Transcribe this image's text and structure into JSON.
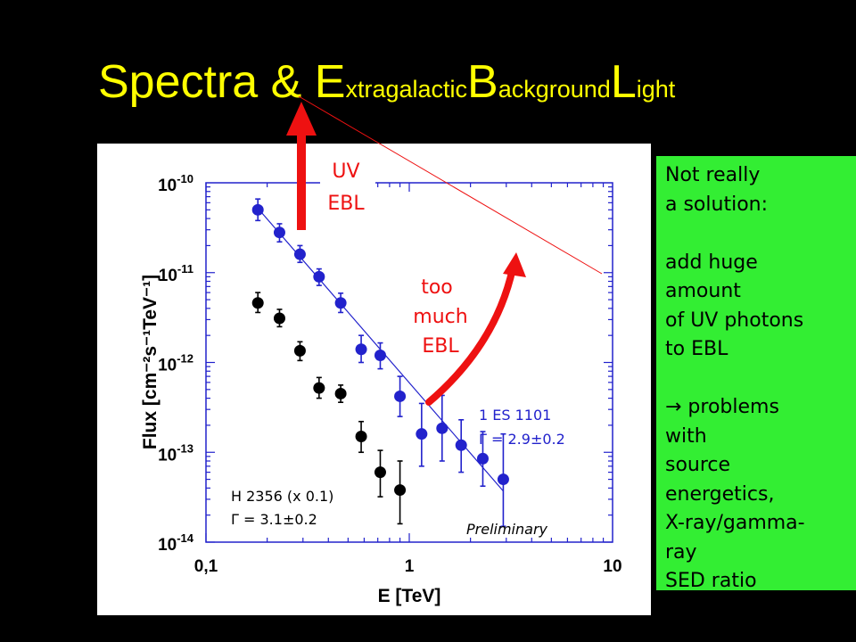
{
  "slide": {
    "title_prefix": "Spectra & ",
    "title_parts": [
      {
        "cap": "E",
        "rest": "xtragalactic"
      },
      {
        "cap": "B",
        "rest": "ackground"
      },
      {
        "cap": "L",
        "rest": "ight"
      }
    ],
    "title_color": "#ffff00",
    "background": "#000000"
  },
  "annotations": {
    "uv_ebl": [
      "UV",
      "EBL"
    ],
    "too_much_ebl": [
      "too",
      "much",
      "EBL"
    ],
    "arrow_color": "#ee1111",
    "label_color": "#ee1111"
  },
  "side_note": {
    "background": "#33ee33",
    "lines": [
      "Not really",
      "a solution:",
      "",
      "add huge",
      "amount",
      "of UV photons",
      "to EBL",
      "",
      "→ problems",
      "with",
      "source",
      "energetics,",
      "X-ray/gamma-",
      "ray",
      "SED ratio"
    ]
  },
  "chart_data": {
    "type": "scatter",
    "xlabel": "E [TeV]",
    "ylabel": "Flux [cm⁻²s⁻¹TeV⁻¹]",
    "x_scale": "log",
    "y_scale": "log",
    "xlim": [
      0.1,
      10
    ],
    "ylim": [
      1e-14,
      1e-10
    ],
    "x_ticks": [
      {
        "value": 0.1,
        "label": "0,1"
      },
      {
        "value": 1,
        "label": "1"
      },
      {
        "value": 10,
        "label": "10"
      }
    ],
    "y_ticks": [
      {
        "value": 1e-10,
        "mantissa": "10",
        "exp": "-10"
      },
      {
        "value": 1e-11,
        "mantissa": "10",
        "exp": "-11"
      },
      {
        "value": 1e-12,
        "mantissa": "10",
        "exp": "-12"
      },
      {
        "value": 1e-13,
        "mantissa": "10",
        "exp": "-13"
      },
      {
        "value": 1e-14,
        "mantissa": "10",
        "exp": "-14"
      }
    ],
    "grid": false,
    "watermark": "Preliminary",
    "series": [
      {
        "name": "1 ES 1101",
        "label_lines": [
          "1 ES 1101",
          "Γ = 2.9±0.2"
        ],
        "color": "#2222cc",
        "points": [
          {
            "x": 0.18,
            "y": 5e-11,
            "lo": 3.8e-11,
            "hi": 6.6e-11
          },
          {
            "x": 0.23,
            "y": 2.8e-11,
            "lo": 2.2e-11,
            "hi": 3.5e-11
          },
          {
            "x": 0.29,
            "y": 1.6e-11,
            "lo": 1.3e-11,
            "hi": 2e-11
          },
          {
            "x": 0.36,
            "y": 9e-12,
            "lo": 7.2e-12,
            "hi": 1.1e-11
          },
          {
            "x": 0.46,
            "y": 4.6e-12,
            "lo": 3.6e-12,
            "hi": 5.9e-12
          },
          {
            "x": 0.58,
            "y": 1.4e-12,
            "lo": 1e-12,
            "hi": 2e-12
          },
          {
            "x": 0.72,
            "y": 1.2e-12,
            "lo": 8.5e-13,
            "hi": 1.65e-12
          },
          {
            "x": 0.9,
            "y": 4.2e-13,
            "lo": 2.5e-13,
            "hi": 7e-13
          },
          {
            "x": 1.15,
            "y": 1.6e-13,
            "lo": 7e-14,
            "hi": 3.5e-13
          },
          {
            "x": 1.45,
            "y": 1.85e-13,
            "lo": 8e-14,
            "hi": 4.3e-13
          },
          {
            "x": 1.8,
            "y": 1.2e-13,
            "lo": 6e-14,
            "hi": 2.3e-13
          },
          {
            "x": 2.3,
            "y": 8.5e-14,
            "lo": 4.2e-14,
            "hi": 1.7e-13
          },
          {
            "x": 2.9,
            "y": 5e-14,
            "lo": 1.5e-14,
            "hi": 1.6e-13
          }
        ],
        "fit": {
          "from": {
            "x": 0.18,
            "y": 5.2e-11
          },
          "to": {
            "x": 2.9,
            "y": 3.7e-14
          }
        }
      },
      {
        "name": "H 2356 (x 0.1)",
        "label_lines": [
          "H 2356 (x 0.1)",
          "Γ = 3.1±0.2"
        ],
        "color": "#000000",
        "points": [
          {
            "x": 0.18,
            "y": 4.6e-12,
            "lo": 3.6e-12,
            "hi": 6e-12
          },
          {
            "x": 0.23,
            "y": 3.1e-12,
            "lo": 2.5e-12,
            "hi": 3.9e-12
          },
          {
            "x": 0.29,
            "y": 1.35e-12,
            "lo": 1.05e-12,
            "hi": 1.7e-12
          },
          {
            "x": 0.36,
            "y": 5.2e-13,
            "lo": 4e-13,
            "hi": 6.8e-13
          },
          {
            "x": 0.46,
            "y": 4.5e-13,
            "lo": 3.6e-13,
            "hi": 5.6e-13
          },
          {
            "x": 0.58,
            "y": 1.5e-13,
            "lo": 1e-13,
            "hi": 2.2e-13
          },
          {
            "x": 0.72,
            "y": 6e-14,
            "lo": 3.2e-14,
            "hi": 1.05e-13
          },
          {
            "x": 0.9,
            "y": 3.8e-14,
            "lo": 1.6e-14,
            "hi": 8e-14
          }
        ]
      }
    ]
  }
}
